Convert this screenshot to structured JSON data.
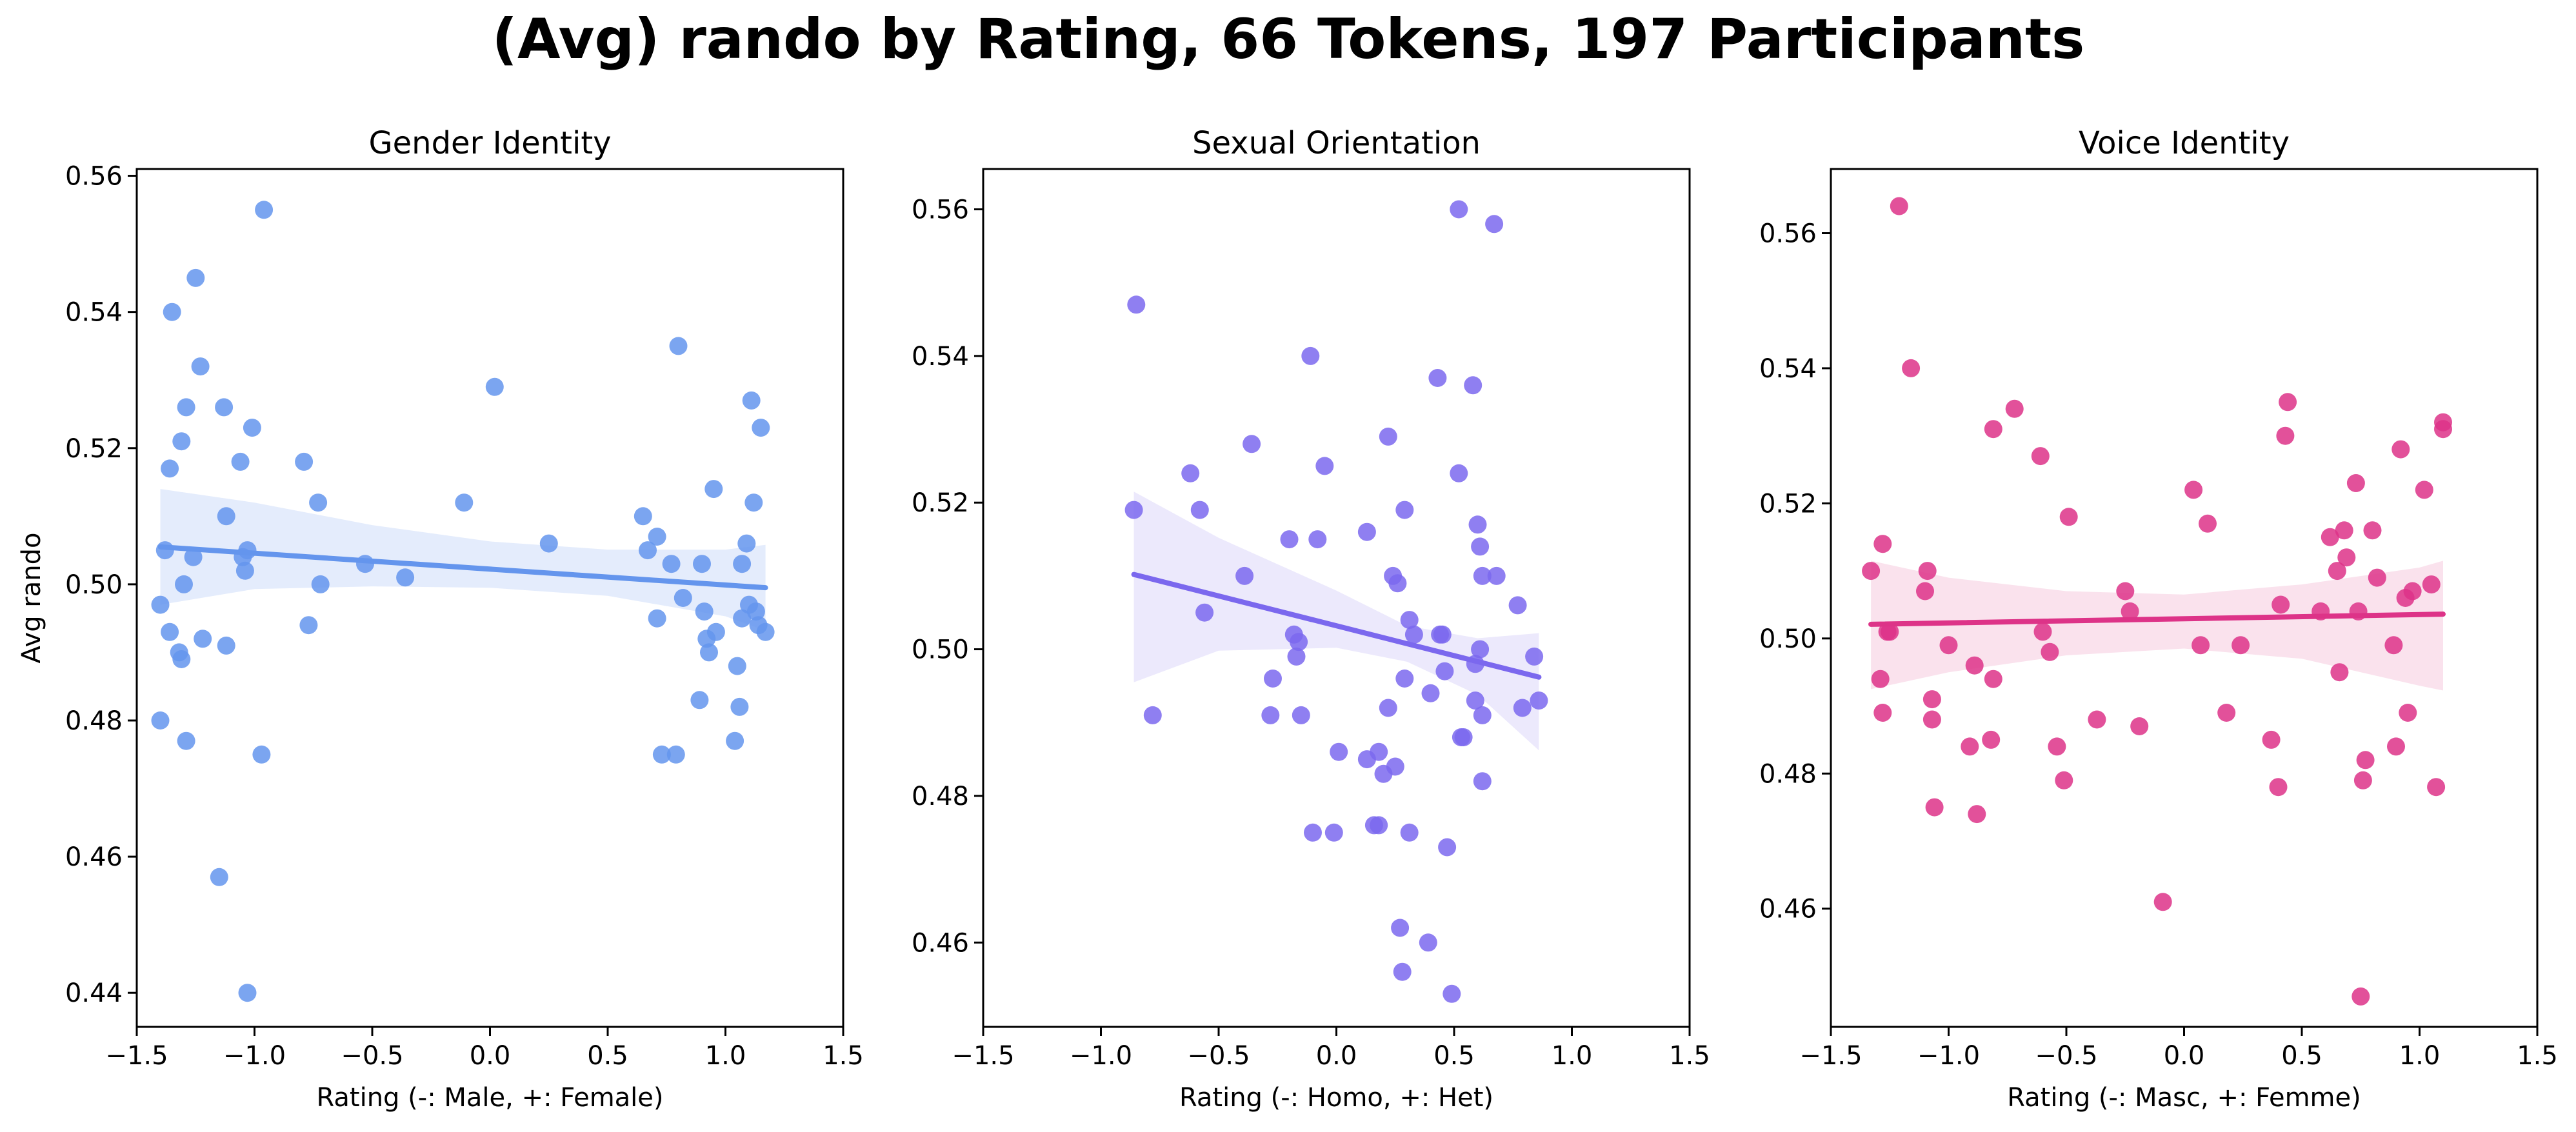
{
  "title": "(Avg) rando by Rating, 66 Tokens, 197 Participants",
  "chart_data": [
    {
      "type": "scatter",
      "title": "Gender Identity",
      "xlabel": "Rating (-: Male, +: Female)",
      "ylabel": "Avg rando",
      "xlim": [
        -1.5,
        1.5
      ],
      "ylim": [
        0.435,
        0.561
      ],
      "xticks": [
        -1.5,
        -1.0,
        -0.5,
        0.0,
        0.5,
        1.0,
        1.5
      ],
      "xtick_labels": [
        "−1.5",
        "−1.0",
        "−0.5",
        "0.0",
        "0.5",
        "1.0",
        "1.5"
      ],
      "yticks": [
        0.44,
        0.46,
        0.48,
        0.5,
        0.52,
        0.54,
        0.56
      ],
      "ytick_labels": [
        "0.44",
        "0.46",
        "0.48",
        "0.50",
        "0.52",
        "0.54",
        "0.56"
      ],
      "color": "#6495ed",
      "points": [
        {
          "x": -1.4,
          "y": 0.48
        },
        {
          "x": -1.4,
          "y": 0.497
        },
        {
          "x": -1.38,
          "y": 0.505
        },
        {
          "x": -1.36,
          "y": 0.517
        },
        {
          "x": -1.35,
          "y": 0.54
        },
        {
          "x": -1.36,
          "y": 0.493
        },
        {
          "x": -1.32,
          "y": 0.49
        },
        {
          "x": -1.31,
          "y": 0.489
        },
        {
          "x": -1.31,
          "y": 0.521
        },
        {
          "x": -1.3,
          "y": 0.5
        },
        {
          "x": -1.29,
          "y": 0.526
        },
        {
          "x": -1.29,
          "y": 0.477
        },
        {
          "x": -1.26,
          "y": 0.504
        },
        {
          "x": -1.25,
          "y": 0.545
        },
        {
          "x": -1.23,
          "y": 0.532
        },
        {
          "x": -1.22,
          "y": 0.492
        },
        {
          "x": -1.15,
          "y": 0.457
        },
        {
          "x": -1.13,
          "y": 0.526
        },
        {
          "x": -1.12,
          "y": 0.51
        },
        {
          "x": -1.12,
          "y": 0.491
        },
        {
          "x": -1.06,
          "y": 0.518
        },
        {
          "x": -1.05,
          "y": 0.504
        },
        {
          "x": -1.04,
          "y": 0.502
        },
        {
          "x": -1.03,
          "y": 0.505
        },
        {
          "x": -1.03,
          "y": 0.44
        },
        {
          "x": -1.01,
          "y": 0.523
        },
        {
          "x": -0.97,
          "y": 0.475
        },
        {
          "x": -0.96,
          "y": 0.555
        },
        {
          "x": -0.79,
          "y": 0.518
        },
        {
          "x": -0.77,
          "y": 0.494
        },
        {
          "x": -0.73,
          "y": 0.512
        },
        {
          "x": -0.72,
          "y": 0.5
        },
        {
          "x": -0.53,
          "y": 0.503
        },
        {
          "x": -0.36,
          "y": 0.501
        },
        {
          "x": -0.11,
          "y": 0.512
        },
        {
          "x": 0.02,
          "y": 0.529
        },
        {
          "x": 0.25,
          "y": 0.506
        },
        {
          "x": 0.65,
          "y": 0.51
        },
        {
          "x": 0.67,
          "y": 0.505
        },
        {
          "x": 0.71,
          "y": 0.495
        },
        {
          "x": 0.71,
          "y": 0.507
        },
        {
          "x": 0.73,
          "y": 0.475
        },
        {
          "x": 0.77,
          "y": 0.503
        },
        {
          "x": 0.79,
          "y": 0.475
        },
        {
          "x": 0.8,
          "y": 0.535
        },
        {
          "x": 0.82,
          "y": 0.498
        },
        {
          "x": 0.89,
          "y": 0.483
        },
        {
          "x": 0.9,
          "y": 0.503
        },
        {
          "x": 0.91,
          "y": 0.496
        },
        {
          "x": 0.92,
          "y": 0.492
        },
        {
          "x": 0.93,
          "y": 0.49
        },
        {
          "x": 0.95,
          "y": 0.514
        },
        {
          "x": 0.96,
          "y": 0.493
        },
        {
          "x": 1.04,
          "y": 0.477
        },
        {
          "x": 1.05,
          "y": 0.488
        },
        {
          "x": 1.06,
          "y": 0.482
        },
        {
          "x": 1.07,
          "y": 0.503
        },
        {
          "x": 1.07,
          "y": 0.495
        },
        {
          "x": 1.09,
          "y": 0.506
        },
        {
          "x": 1.1,
          "y": 0.497
        },
        {
          "x": 1.11,
          "y": 0.527
        },
        {
          "x": 1.12,
          "y": 0.512
        },
        {
          "x": 1.13,
          "y": 0.496
        },
        {
          "x": 1.14,
          "y": 0.494
        },
        {
          "x": 1.15,
          "y": 0.523
        },
        {
          "x": 1.17,
          "y": 0.493
        }
      ],
      "regression": {
        "x": [
          -1.4,
          1.17
        ],
        "y": [
          0.5055,
          0.4995
        ]
      },
      "ci_band": {
        "x": [
          -1.4,
          -1.0,
          -0.5,
          0.0,
          0.5,
          1.0,
          1.17
        ],
        "lower": [
          0.497,
          0.4993,
          0.4997,
          0.4995,
          0.4983,
          0.4953,
          0.4932
        ],
        "upper": [
          0.514,
          0.512,
          0.5087,
          0.5063,
          0.5051,
          0.5051,
          0.5058
        ]
      }
    },
    {
      "type": "scatter",
      "title": "Sexual Orientation",
      "xlabel": "Rating (-: Homo, +: Het)",
      "ylabel": "",
      "xlim": [
        -1.5,
        1.5
      ],
      "ylim": [
        0.4485,
        0.5655
      ],
      "xticks": [
        -1.5,
        -1.0,
        -0.5,
        0.0,
        0.5,
        1.0,
        1.5
      ],
      "xtick_labels": [
        "−1.5",
        "−1.0",
        "−0.5",
        "0.0",
        "0.5",
        "1.0",
        "1.5"
      ],
      "yticks": [
        0.46,
        0.48,
        0.5,
        0.52,
        0.54,
        0.56
      ],
      "ytick_labels": [
        "0.46",
        "0.48",
        "0.50",
        "0.52",
        "0.54",
        "0.56"
      ],
      "color": "#7b68ee",
      "points": [
        {
          "x": -0.86,
          "y": 0.519
        },
        {
          "x": -0.85,
          "y": 0.547
        },
        {
          "x": -0.78,
          "y": 0.491
        },
        {
          "x": -0.62,
          "y": 0.524
        },
        {
          "x": -0.58,
          "y": 0.519
        },
        {
          "x": -0.56,
          "y": 0.505
        },
        {
          "x": -0.39,
          "y": 0.51
        },
        {
          "x": -0.36,
          "y": 0.528
        },
        {
          "x": -0.28,
          "y": 0.491
        },
        {
          "x": -0.27,
          "y": 0.496
        },
        {
          "x": -0.2,
          "y": 0.515
        },
        {
          "x": -0.18,
          "y": 0.502
        },
        {
          "x": -0.17,
          "y": 0.499
        },
        {
          "x": -0.16,
          "y": 0.501
        },
        {
          "x": -0.15,
          "y": 0.491
        },
        {
          "x": -0.11,
          "y": 0.54
        },
        {
          "x": -0.1,
          "y": 0.475
        },
        {
          "x": -0.08,
          "y": 0.515
        },
        {
          "x": -0.05,
          "y": 0.525
        },
        {
          "x": -0.01,
          "y": 0.475
        },
        {
          "x": 0.01,
          "y": 0.486
        },
        {
          "x": 0.13,
          "y": 0.516
        },
        {
          "x": 0.13,
          "y": 0.485
        },
        {
          "x": 0.16,
          "y": 0.476
        },
        {
          "x": 0.18,
          "y": 0.476
        },
        {
          "x": 0.18,
          "y": 0.486
        },
        {
          "x": 0.2,
          "y": 0.483
        },
        {
          "x": 0.22,
          "y": 0.529
        },
        {
          "x": 0.22,
          "y": 0.492
        },
        {
          "x": 0.24,
          "y": 0.51
        },
        {
          "x": 0.25,
          "y": 0.484
        },
        {
          "x": 0.26,
          "y": 0.509
        },
        {
          "x": 0.27,
          "y": 0.462
        },
        {
          "x": 0.28,
          "y": 0.456
        },
        {
          "x": 0.29,
          "y": 0.519
        },
        {
          "x": 0.29,
          "y": 0.496
        },
        {
          "x": 0.31,
          "y": 0.504
        },
        {
          "x": 0.31,
          "y": 0.475
        },
        {
          "x": 0.33,
          "y": 0.502
        },
        {
          "x": 0.39,
          "y": 0.46
        },
        {
          "x": 0.4,
          "y": 0.494
        },
        {
          "x": 0.43,
          "y": 0.537
        },
        {
          "x": 0.44,
          "y": 0.502
        },
        {
          "x": 0.45,
          "y": 0.502
        },
        {
          "x": 0.46,
          "y": 0.497
        },
        {
          "x": 0.47,
          "y": 0.473
        },
        {
          "x": 0.49,
          "y": 0.453
        },
        {
          "x": 0.52,
          "y": 0.56
        },
        {
          "x": 0.52,
          "y": 0.524
        },
        {
          "x": 0.53,
          "y": 0.488
        },
        {
          "x": 0.54,
          "y": 0.488
        },
        {
          "x": 0.58,
          "y": 0.536
        },
        {
          "x": 0.59,
          "y": 0.493
        },
        {
          "x": 0.59,
          "y": 0.498
        },
        {
          "x": 0.6,
          "y": 0.517
        },
        {
          "x": 0.61,
          "y": 0.5
        },
        {
          "x": 0.61,
          "y": 0.514
        },
        {
          "x": 0.62,
          "y": 0.491
        },
        {
          "x": 0.62,
          "y": 0.482
        },
        {
          "x": 0.62,
          "y": 0.51
        },
        {
          "x": 0.67,
          "y": 0.558
        },
        {
          "x": 0.68,
          "y": 0.51
        },
        {
          "x": 0.77,
          "y": 0.506
        },
        {
          "x": 0.79,
          "y": 0.492
        },
        {
          "x": 0.84,
          "y": 0.499
        },
        {
          "x": 0.86,
          "y": 0.493
        }
      ],
      "regression": {
        "x": [
          -0.86,
          0.86
        ],
        "y": [
          0.5102,
          0.4962
        ]
      },
      "ci_band": {
        "x": [
          -0.86,
          -0.5,
          0.0,
          0.3,
          0.6,
          0.86
        ],
        "lower": [
          0.4955,
          0.4998,
          0.5002,
          0.4983,
          0.4938,
          0.4862
        ],
        "upper": [
          0.5215,
          0.5152,
          0.508,
          0.5032,
          0.5015,
          0.5022
        ]
      }
    },
    {
      "type": "scatter",
      "title": "Voice Identity",
      "xlabel": "Rating (-: Masc, +: Femme)",
      "ylabel": "",
      "xlim": [
        -1.5,
        1.5
      ],
      "ylim": [
        0.4425,
        0.5695
      ],
      "xticks": [
        -1.5,
        -1.0,
        -0.5,
        0.0,
        0.5,
        1.0,
        1.5
      ],
      "xtick_labels": [
        "−1.5",
        "−1.0",
        "−0.5",
        "0.0",
        "0.5",
        "1.0",
        "1.5"
      ],
      "yticks": [
        0.46,
        0.48,
        0.5,
        0.52,
        0.54,
        0.56
      ],
      "ytick_labels": [
        "0.46",
        "0.48",
        "0.50",
        "0.52",
        "0.54",
        "0.56"
      ],
      "color": "#dd3388",
      "points": [
        {
          "x": -1.33,
          "y": 0.51
        },
        {
          "x": -1.29,
          "y": 0.494
        },
        {
          "x": -1.28,
          "y": 0.514
        },
        {
          "x": -1.28,
          "y": 0.489
        },
        {
          "x": -1.26,
          "y": 0.501
        },
        {
          "x": -1.25,
          "y": 0.501
        },
        {
          "x": -1.21,
          "y": 0.564
        },
        {
          "x": -1.16,
          "y": 0.54
        },
        {
          "x": -1.1,
          "y": 0.507
        },
        {
          "x": -1.09,
          "y": 0.51
        },
        {
          "x": -1.07,
          "y": 0.491
        },
        {
          "x": -1.07,
          "y": 0.488
        },
        {
          "x": -1.06,
          "y": 0.475
        },
        {
          "x": -1.0,
          "y": 0.499
        },
        {
          "x": -0.91,
          "y": 0.484
        },
        {
          "x": -0.89,
          "y": 0.496
        },
        {
          "x": -0.88,
          "y": 0.474
        },
        {
          "x": -0.82,
          "y": 0.485
        },
        {
          "x": -0.81,
          "y": 0.494
        },
        {
          "x": -0.81,
          "y": 0.531
        },
        {
          "x": -0.72,
          "y": 0.534
        },
        {
          "x": -0.61,
          "y": 0.527
        },
        {
          "x": -0.6,
          "y": 0.501
        },
        {
          "x": -0.57,
          "y": 0.498
        },
        {
          "x": -0.54,
          "y": 0.484
        },
        {
          "x": -0.51,
          "y": 0.479
        },
        {
          "x": -0.49,
          "y": 0.518
        },
        {
          "x": -0.37,
          "y": 0.488
        },
        {
          "x": -0.25,
          "y": 0.507
        },
        {
          "x": -0.23,
          "y": 0.504
        },
        {
          "x": -0.19,
          "y": 0.487
        },
        {
          "x": -0.09,
          "y": 0.461
        },
        {
          "x": 0.04,
          "y": 0.522
        },
        {
          "x": 0.07,
          "y": 0.499
        },
        {
          "x": 0.1,
          "y": 0.517
        },
        {
          "x": 0.18,
          "y": 0.489
        },
        {
          "x": 0.24,
          "y": 0.499
        },
        {
          "x": 0.37,
          "y": 0.485
        },
        {
          "x": 0.4,
          "y": 0.478
        },
        {
          "x": 0.41,
          "y": 0.505
        },
        {
          "x": 0.43,
          "y": 0.53
        },
        {
          "x": 0.44,
          "y": 0.535
        },
        {
          "x": 0.58,
          "y": 0.504
        },
        {
          "x": 0.62,
          "y": 0.515
        },
        {
          "x": 0.65,
          "y": 0.51
        },
        {
          "x": 0.66,
          "y": 0.495
        },
        {
          "x": 0.68,
          "y": 0.516
        },
        {
          "x": 0.69,
          "y": 0.512
        },
        {
          "x": 0.73,
          "y": 0.523
        },
        {
          "x": 0.74,
          "y": 0.504
        },
        {
          "x": 0.75,
          "y": 0.447
        },
        {
          "x": 0.76,
          "y": 0.479
        },
        {
          "x": 0.77,
          "y": 0.482
        },
        {
          "x": 0.8,
          "y": 0.516
        },
        {
          "x": 0.82,
          "y": 0.509
        },
        {
          "x": 0.89,
          "y": 0.499
        },
        {
          "x": 0.9,
          "y": 0.484
        },
        {
          "x": 0.92,
          "y": 0.528
        },
        {
          "x": 0.94,
          "y": 0.506
        },
        {
          "x": 0.95,
          "y": 0.489
        },
        {
          "x": 0.97,
          "y": 0.507
        },
        {
          "x": 1.02,
          "y": 0.522
        },
        {
          "x": 1.05,
          "y": 0.508
        },
        {
          "x": 1.07,
          "y": 0.478
        },
        {
          "x": 1.1,
          "y": 0.532
        },
        {
          "x": 1.1,
          "y": 0.531
        }
      ],
      "regression": {
        "x": [
          -1.33,
          1.1
        ],
        "y": [
          0.5021,
          0.5036
        ]
      },
      "ci_band": {
        "x": [
          -1.33,
          -1.0,
          -0.5,
          0.0,
          0.5,
          1.0,
          1.1
        ],
        "lower": [
          0.4925,
          0.495,
          0.4975,
          0.4985,
          0.497,
          0.493,
          0.4923
        ],
        "upper": [
          0.5115,
          0.509,
          0.507,
          0.5065,
          0.508,
          0.5105,
          0.5115
        ]
      }
    }
  ]
}
